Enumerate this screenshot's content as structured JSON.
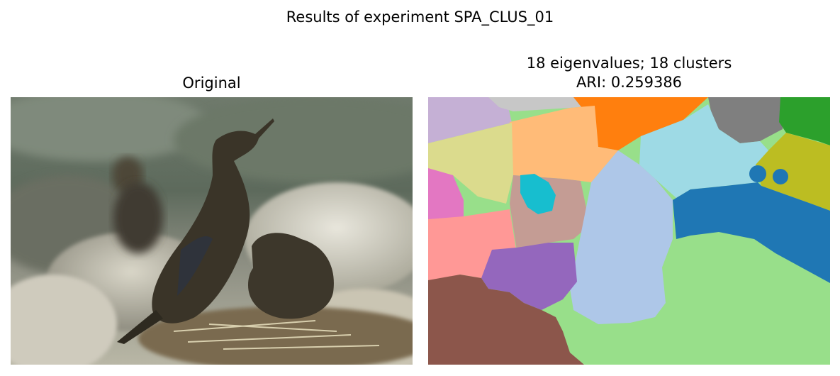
{
  "figure": {
    "suptitle": "Results of experiment SPA_CLUS_01"
  },
  "left_panel": {
    "title": "Original",
    "image": "photo of cormorants on rocks"
  },
  "right_panel": {
    "title_line1": "18 eigenvalues; 18 clusters",
    "title_line2": "ARI: 0.259386",
    "image": "segmentation map of the photo",
    "num_clusters": 18,
    "palette": [
      "#1f77b4",
      "#aec7e8",
      "#ff7f0e",
      "#ffbb78",
      "#2ca02c",
      "#98df8a",
      "#d62728",
      "#ff9896",
      "#9467bd",
      "#c5b0d5",
      "#8c564b",
      "#c49c94",
      "#e377c2",
      "#f7b6d2",
      "#7f7f7f",
      "#c7c7c7",
      "#bcbd22",
      "#dbdb8d",
      "#17becf",
      "#9edae5"
    ]
  }
}
